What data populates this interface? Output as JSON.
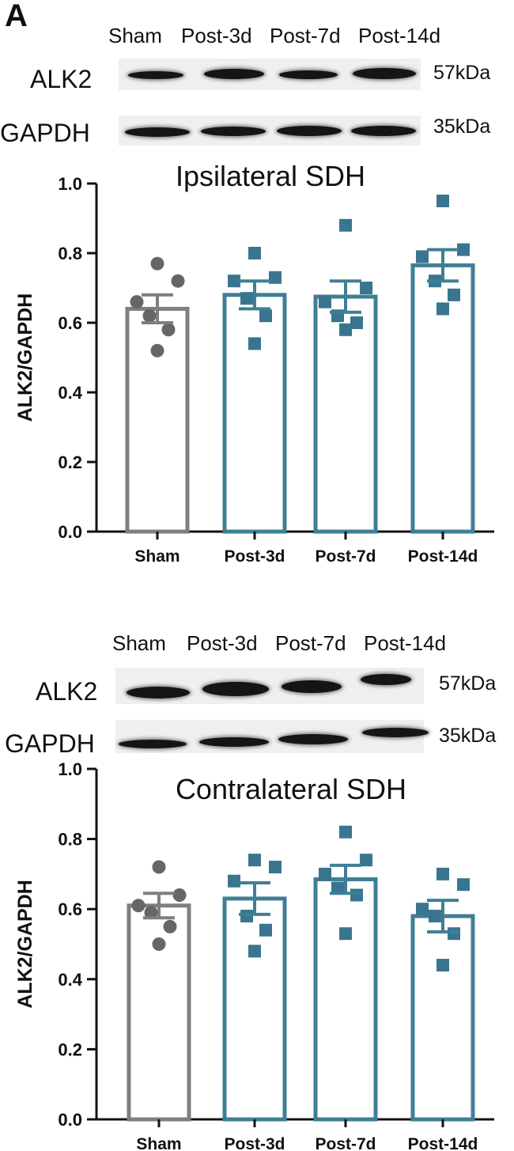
{
  "panel_label": "A",
  "blots": [
    {
      "lanes": [
        "Sham",
        "Post-3d",
        "Post-7d",
        "Post-14d"
      ],
      "rows": [
        {
          "protein": "ALK2",
          "size": "57kDa"
        },
        {
          "protein": "GAPDH",
          "size": "35kDa"
        }
      ]
    },
    {
      "lanes": [
        "Sham",
        "Post-3d",
        "Post-7d",
        "Post-14d"
      ],
      "rows": [
        {
          "protein": "ALK2",
          "size": "57kDa"
        },
        {
          "protein": "GAPDH",
          "size": "35kDa"
        }
      ]
    }
  ],
  "colors": {
    "sham": "#7f7f7f",
    "treated": "#3f7f96",
    "points_sham": "#666666",
    "points_treated": "#3a7590"
  },
  "chart_data": [
    {
      "type": "bar",
      "title": "Ipsilateral SDH",
      "ylabel": "ALK2/GAPDH",
      "ylim": [
        0,
        1.0
      ],
      "yticks": [
        "0.0",
        "0.2",
        "0.4",
        "0.6",
        "0.8",
        "1.0"
      ],
      "categories": [
        "Sham",
        "Post-3d",
        "Post-7d",
        "Post-14d"
      ],
      "values": [
        0.64,
        0.68,
        0.675,
        0.765
      ],
      "sem": [
        0.04,
        0.04,
        0.045,
        0.045
      ],
      "points": [
        [
          0.77,
          0.72,
          0.66,
          0.62,
          0.58,
          0.52
        ],
        [
          0.8,
          0.73,
          0.72,
          0.67,
          0.62,
          0.54
        ],
        [
          0.88,
          0.7,
          0.66,
          0.62,
          0.6,
          0.58
        ],
        [
          0.95,
          0.81,
          0.79,
          0.72,
          0.68,
          0.64
        ]
      ],
      "markers": [
        "circle",
        "square",
        "square",
        "square"
      ]
    },
    {
      "type": "bar",
      "title": "Contralateral SDH",
      "ylabel": "ALK2/GAPDH",
      "ylim": [
        0,
        1.0
      ],
      "yticks": [
        "0.0",
        "0.2",
        "0.4",
        "0.6",
        "0.8",
        "1.0"
      ],
      "categories": [
        "Sham",
        "Post-3d",
        "Post-7d",
        "Post-14d"
      ],
      "values": [
        0.61,
        0.63,
        0.685,
        0.58
      ],
      "sem": [
        0.035,
        0.045,
        0.04,
        0.045
      ],
      "points": [
        [
          0.72,
          0.64,
          0.61,
          0.59,
          0.55,
          0.5
        ],
        [
          0.74,
          0.72,
          0.68,
          0.58,
          0.54,
          0.48
        ],
        [
          0.82,
          0.74,
          0.7,
          0.66,
          0.64,
          0.53
        ],
        [
          0.7,
          0.67,
          0.6,
          0.58,
          0.53,
          0.44
        ]
      ],
      "markers": [
        "circle",
        "square",
        "square",
        "square"
      ]
    }
  ]
}
